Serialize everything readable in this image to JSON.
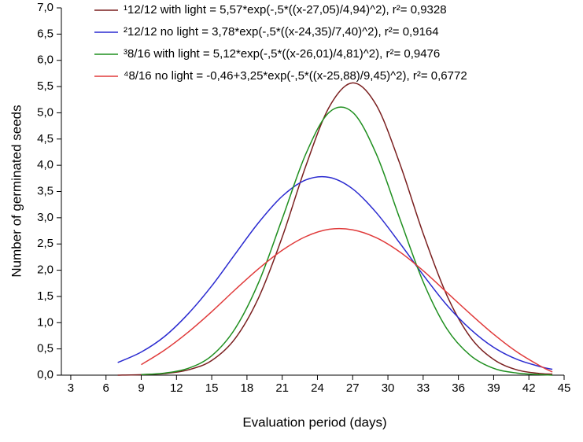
{
  "chart_data": {
    "type": "line",
    "x_label": "Evaluation period (days)",
    "y_label": "Number of germinated seeds",
    "x": [
      7,
      9,
      11,
      13,
      15,
      17,
      19,
      21,
      23,
      25,
      27,
      29,
      31,
      33,
      35,
      37,
      39,
      41,
      43,
      44
    ],
    "series": [
      {
        "name": "¹12/12 with light = 5,57*exp(-,5*((x-27,05)/4,94)^2), r²= 0,9328",
        "color": "#7a1f1f",
        "values": [
          0.0,
          0.01,
          0.03,
          0.1,
          0.28,
          0.7,
          1.48,
          2.63,
          3.98,
          5.11,
          5.57,
          5.15,
          4.04,
          2.7,
          1.53,
          0.73,
          0.3,
          0.1,
          0.03,
          0.02
        ]
      },
      {
        "name": "²12/12 no light = 3,78*exp(-,5*((x-24,35)/7,40)^2), r²= 0,9164",
        "color": "#2a2ad0",
        "values": [
          0.24,
          0.44,
          0.74,
          1.17,
          1.7,
          2.31,
          2.91,
          3.41,
          3.72,
          3.77,
          3.55,
          3.1,
          2.52,
          1.91,
          1.34,
          0.88,
          0.53,
          0.3,
          0.16,
          0.11
        ]
      },
      {
        "name": "³8/16 with light = 5,12*exp(-,5*((x-26,01)/4,81)^2), r²= 0,9476",
        "color": "#1f8f1f",
        "values": [
          null,
          0.01,
          0.04,
          0.13,
          0.37,
          0.89,
          1.77,
          2.98,
          4.21,
          5.01,
          5.01,
          4.22,
          2.99,
          1.78,
          0.89,
          0.38,
          0.13,
          0.04,
          0.01,
          0.0
        ]
      },
      {
        "name": "⁴8/16 no light = -0,46+3,25*exp(-,5*((x-25,88)/9,45)^2), r²= 0,6772",
        "color": "#e03a3a",
        "values": [
          null,
          0.2,
          0.48,
          0.82,
          1.21,
          1.63,
          2.03,
          2.38,
          2.64,
          2.78,
          2.77,
          2.62,
          2.35,
          1.99,
          1.58,
          1.17,
          0.78,
          0.44,
          0.17,
          0.06
        ]
      }
    ],
    "xlim": [
      2.2,
      45
    ],
    "xticks": [
      3,
      6,
      9,
      12,
      15,
      18,
      21,
      24,
      27,
      30,
      33,
      36,
      39,
      42,
      45
    ],
    "ylim": [
      0,
      7
    ],
    "yticks": [
      {
        "value": 0,
        "label": "0,0"
      },
      {
        "value": 0.5,
        "label": "0,5"
      },
      {
        "value": 1,
        "label": "1,0"
      },
      {
        "value": 1.5,
        "label": "1,5"
      },
      {
        "value": 2,
        "label": "2,0"
      },
      {
        "value": 2.5,
        "label": "2,5"
      },
      {
        "value": 3,
        "label": "3,0"
      },
      {
        "value": 3.5,
        "label": "3,5"
      },
      {
        "value": 4,
        "label": "4,0"
      },
      {
        "value": 4.5,
        "label": "4,5"
      },
      {
        "value": 5,
        "label": "5,0"
      },
      {
        "value": 5.5,
        "label": "5,5"
      },
      {
        "value": 6,
        "label": "6,0"
      },
      {
        "value": 6.5,
        "label": "6,5"
      },
      {
        "value": 7,
        "label": "7,0"
      }
    ],
    "grid": false,
    "legend": "top"
  }
}
